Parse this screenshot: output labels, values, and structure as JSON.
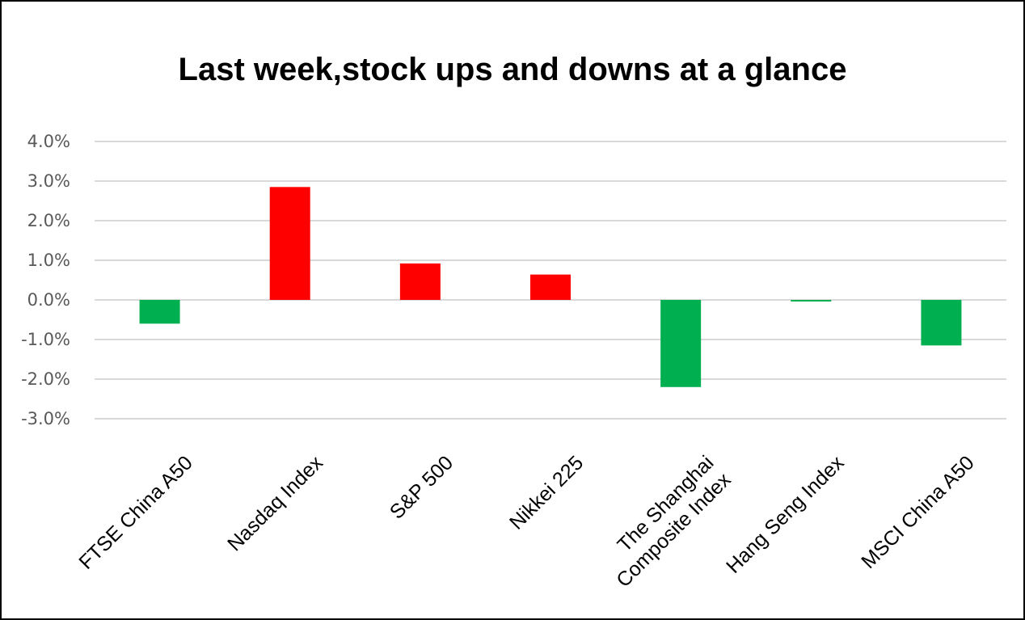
{
  "chart_data": {
    "type": "bar",
    "title": "Last week,stock ups and downs at a glance",
    "xlabel": "",
    "ylabel": "",
    "categories": [
      [
        "FTSE China A50"
      ],
      [
        "Nasdaq Index"
      ],
      [
        "S&P 500"
      ],
      [
        "Nikkei 225"
      ],
      [
        "The Shanghai",
        "Composite Index"
      ],
      [
        "Hang Seng Index"
      ],
      [
        "MSCI China A50"
      ]
    ],
    "values": [
      -0.6,
      2.85,
      0.92,
      0.64,
      -2.2,
      -0.04,
      -1.15
    ],
    "ylim": [
      -3.0,
      4.0
    ],
    "yticks": [
      4.0,
      3.0,
      2.0,
      1.0,
      0.0,
      -1.0,
      -2.0,
      -3.0
    ],
    "ytick_labels": [
      "4.0%",
      "3.0%",
      "2.0%",
      "1.0%",
      "0.0%",
      "-1.0%",
      "-2.0%",
      "-3.0%"
    ],
    "grid": true,
    "legend": "none",
    "colors": {
      "up": "#ff0000",
      "down": "#00b050",
      "grid": "#d9d9d9",
      "tick_text": "#595959"
    }
  }
}
